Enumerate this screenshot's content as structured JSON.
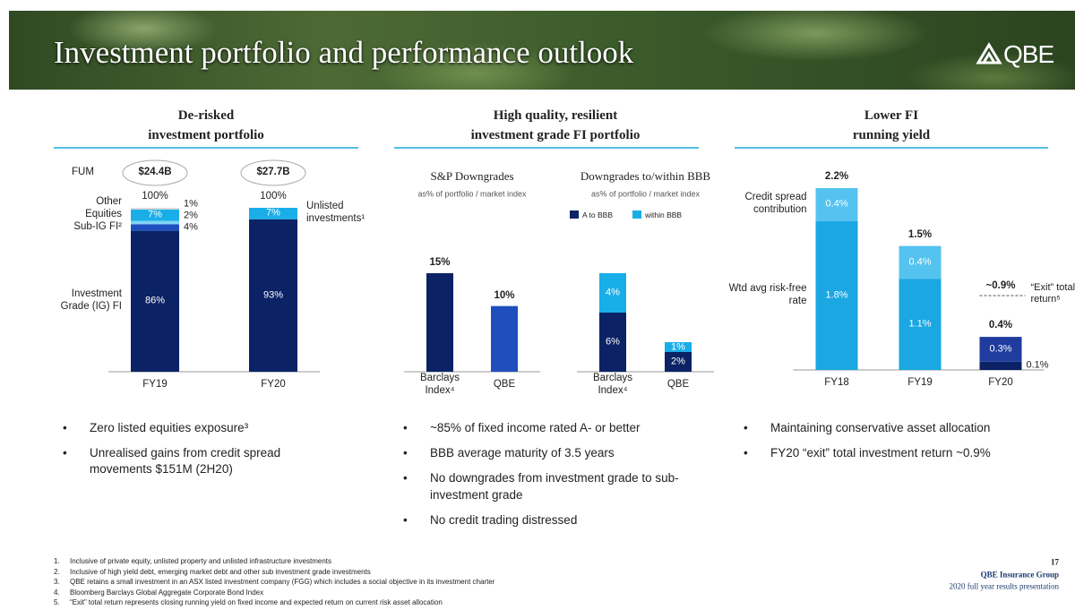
{
  "header": {
    "title": "Investment portfolio and performance outlook",
    "logo": "QBE"
  },
  "sections": [
    {
      "heading": [
        "De-risked",
        "investment portfolio"
      ],
      "bullets": [
        "Zero listed equities exposure³",
        "Unrealised gains from credit spread movements $151M (2H20)"
      ]
    },
    {
      "heading": [
        "High quality, resilient",
        "investment grade FI portfolio"
      ],
      "bullets": [
        "~85% of fixed income rated A- or better",
        "BBB average maturity of 3.5 years",
        "No downgrades from investment grade to sub-investment grade",
        "No credit trading distressed"
      ]
    },
    {
      "heading": [
        "Lower FI",
        "running yield"
      ],
      "bullets": [
        "Maintaining conservative asset allocation",
        "FY20 “exit” total investment return ~0.9%"
      ]
    }
  ],
  "chart_data": [
    {
      "type": "stacked_bar",
      "fum_label": "FUM",
      "fum": [
        "$24.4B",
        "$27.7B"
      ],
      "categories": [
        "FY19",
        "FY20"
      ],
      "ylim": [
        0,
        100
      ],
      "series": [
        {
          "name": "Investment Grade (IG) FI",
          "color": "#0b2265",
          "values": [
            86,
            93
          ],
          "value_labels": [
            "86%",
            "93%"
          ]
        },
        {
          "name": "Sub-IG FI²",
          "color": "#1f4fbf",
          "values": [
            4,
            null
          ],
          "value_labels": [
            "4%",
            null
          ]
        },
        {
          "name": "Equities",
          "color": "#7fd3f5",
          "values": [
            2,
            null
          ],
          "value_labels": [
            "2%",
            null
          ]
        },
        {
          "name": "Unlisted investments¹",
          "color": "#19aee8",
          "values": [
            7,
            7
          ],
          "value_labels": [
            "7%",
            "7%"
          ]
        },
        {
          "name": "Other",
          "color": "#d9d9d9",
          "values": [
            1,
            null
          ],
          "value_labels": [
            "1%",
            null
          ]
        }
      ],
      "totals": [
        100,
        100
      ],
      "total_labels": [
        "100%",
        "100%"
      ]
    },
    {
      "type": "bar",
      "title": "S&P Downgrades",
      "subtitle": "as% of portfolio / market index",
      "categories": [
        "Barclays Index⁴",
        "QBE"
      ],
      "values": [
        15,
        10
      ],
      "value_labels": [
        "15%",
        "10%"
      ],
      "colors": [
        "#0b2265",
        "#1f4fbf"
      ],
      "ylim": [
        0,
        15
      ]
    },
    {
      "type": "stacked_bar",
      "title": "Downgrades to/within BBB",
      "subtitle": "as% of portfolio / market index",
      "categories": [
        "Barclays Index⁴",
        "QBE"
      ],
      "ylim": [
        0,
        10
      ],
      "legend": true,
      "series": [
        {
          "name": "A to BBB",
          "color": "#0b2265",
          "values": [
            6,
            2
          ],
          "value_labels": [
            "6%",
            "2%"
          ]
        },
        {
          "name": "within BBB",
          "color": "#19aee8",
          "values": [
            4,
            1
          ],
          "value_labels": [
            "4%",
            "1%"
          ]
        }
      ]
    },
    {
      "type": "stacked_bar",
      "categories": [
        "FY18",
        "FY19",
        "FY20"
      ],
      "ylim": [
        0,
        2.2
      ],
      "series": [
        {
          "name": "Wtd avg risk-free rate",
          "colors": [
            "#1aa7e2",
            "#1aa7e2",
            "#0b2265"
          ],
          "values": [
            1.8,
            1.1,
            0.1
          ],
          "value_labels": [
            "1.8%",
            "1.1%",
            "0.1%"
          ]
        },
        {
          "name": "Credit spread contribution",
          "colors": [
            "#55c3f0",
            "#55c3f0",
            "#1f3c9e"
          ],
          "values": [
            0.4,
            0.4,
            0.3
          ],
          "value_labels": [
            "0.4%",
            "0.4%",
            "0.3%"
          ]
        }
      ],
      "totals": [
        2.2,
        1.5,
        0.4
      ],
      "total_labels": [
        "2.2%",
        "1.5%",
        "0.4%"
      ],
      "annotation": {
        "value": 0.9,
        "label": "~0.9%",
        "text": "“Exit” total return⁵"
      }
    }
  ],
  "footnotes": [
    {
      "number": "1.",
      "text": "Inclusive of private equity, unlisted property and unlisted infrastructure investments"
    },
    {
      "number": "2.",
      "text": "Inclusive of high yield debt, emerging market debt and other sub investment grade investments"
    },
    {
      "number": "3.",
      "text": "QBE retains a small investment in an ASX listed investment company (FGG) which includes a social objective in its investment charter"
    },
    {
      "number": "4.",
      "text": "Bloomberg Barclays Global Aggregate Corporate Bond Index"
    },
    {
      "number": "5.",
      "text": "“Exit” total return represents closing running yield on fixed income and expected return on current risk asset allocation"
    }
  ],
  "footer": {
    "page": "17",
    "company": "QBE Insurance Group",
    "presentation": "2020 full year results presentation"
  }
}
